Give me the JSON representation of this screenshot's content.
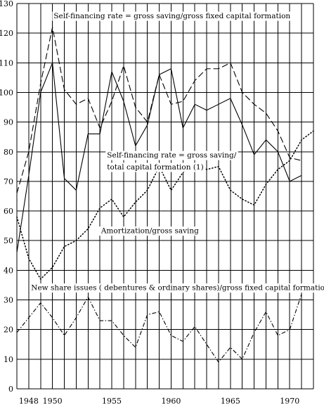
{
  "chart_data": {
    "type": "line",
    "xlim": [
      1947,
      1972
    ],
    "ylim": [
      0,
      130
    ],
    "ytick_step": 10,
    "x_tick_labels": [
      "1948",
      "1950",
      "1955",
      "1960",
      "1965",
      "1970"
    ],
    "grid": "on",
    "line_color": "#000000",
    "series": [
      {
        "name": "Self-financing rate = gross saving/gross fixed capital formation",
        "style": "dashed",
        "x": [
          1947,
          1948,
          1949,
          1950,
          1951,
          1952,
          1953,
          1954,
          1955,
          1956,
          1957,
          1958,
          1959,
          1960,
          1961,
          1962,
          1963,
          1964,
          1965,
          1966,
          1967,
          1968,
          1969,
          1970,
          1971
        ],
        "y": [
          66,
          80,
          103,
          122,
          101,
          96,
          98,
          88,
          97,
          109,
          95,
          90,
          106,
          96,
          97,
          104,
          108,
          108,
          110,
          100,
          96,
          93,
          87,
          78,
          77
        ]
      },
      {
        "name": "Self-financing rate = gross saving/total capital formation (1)",
        "style": "solid",
        "x": [
          1947,
          1948,
          1949,
          1950,
          1951,
          1952,
          1953,
          1954,
          1955,
          1956,
          1957,
          1958,
          1959,
          1960,
          1961,
          1962,
          1963,
          1964,
          1965,
          1966,
          1967,
          1968,
          1969,
          1970,
          1971
        ],
        "y": [
          46,
          72,
          100,
          110,
          71,
          67,
          86,
          86,
          107,
          97,
          82,
          89,
          106,
          108,
          88,
          96,
          94,
          96,
          98,
          89,
          79,
          84,
          80,
          70,
          72
        ]
      },
      {
        "name": "Amortization/gross saving",
        "style": "dotted",
        "x": [
          1947,
          1948,
          1949,
          1950,
          1951,
          1952,
          1953,
          1954,
          1955,
          1956,
          1957,
          1958,
          1959,
          1960,
          1961,
          1962,
          1963,
          1964,
          1965,
          1966,
          1967,
          1968,
          1969,
          1970,
          1971,
          1972
        ],
        "y": [
          58,
          44,
          37,
          41,
          48,
          50,
          54,
          61,
          64,
          58,
          63,
          67,
          75,
          67,
          73,
          76,
          74,
          75,
          67,
          64,
          62,
          69,
          74,
          77,
          84,
          87
        ]
      },
      {
        "name": "New share issues ( debentures & ordinary shares)/gross fixed capital formation",
        "style": "dash-dot",
        "x": [
          1947,
          1948,
          1949,
          1950,
          1951,
          1952,
          1953,
          1954,
          1955,
          1956,
          1957,
          1958,
          1959,
          1960,
          1961,
          1962,
          1963,
          1964,
          1965,
          1966,
          1967,
          1968,
          1969,
          1970,
          1971
        ],
        "y": [
          19,
          24,
          29,
          24,
          18,
          24,
          31,
          23,
          23,
          18,
          14,
          25,
          26,
          18,
          16,
          21,
          15,
          9,
          14,
          10,
          19,
          26,
          18,
          20,
          32
        ]
      }
    ],
    "annotations": [
      {
        "text": "Self-financing rate = gross saving/gross fixed capital formation",
        "anchor_x": 1950.1,
        "anchor_y": 125
      },
      {
        "text": "Self-financing rate = gross saving/",
        "anchor_x": 1954.6,
        "anchor_y": 78
      },
      {
        "text": "total capital formation (1)",
        "anchor_x": 1954.6,
        "anchor_y": 74
      },
      {
        "text": "Amortization/gross saving",
        "anchor_x": 1954.1,
        "anchor_y": 52.5
      },
      {
        "text": "New share issues ( debentures & ordinary shares)/gross fixed capital formation",
        "anchor_x": 1948.2,
        "anchor_y": 33.3
      }
    ]
  }
}
